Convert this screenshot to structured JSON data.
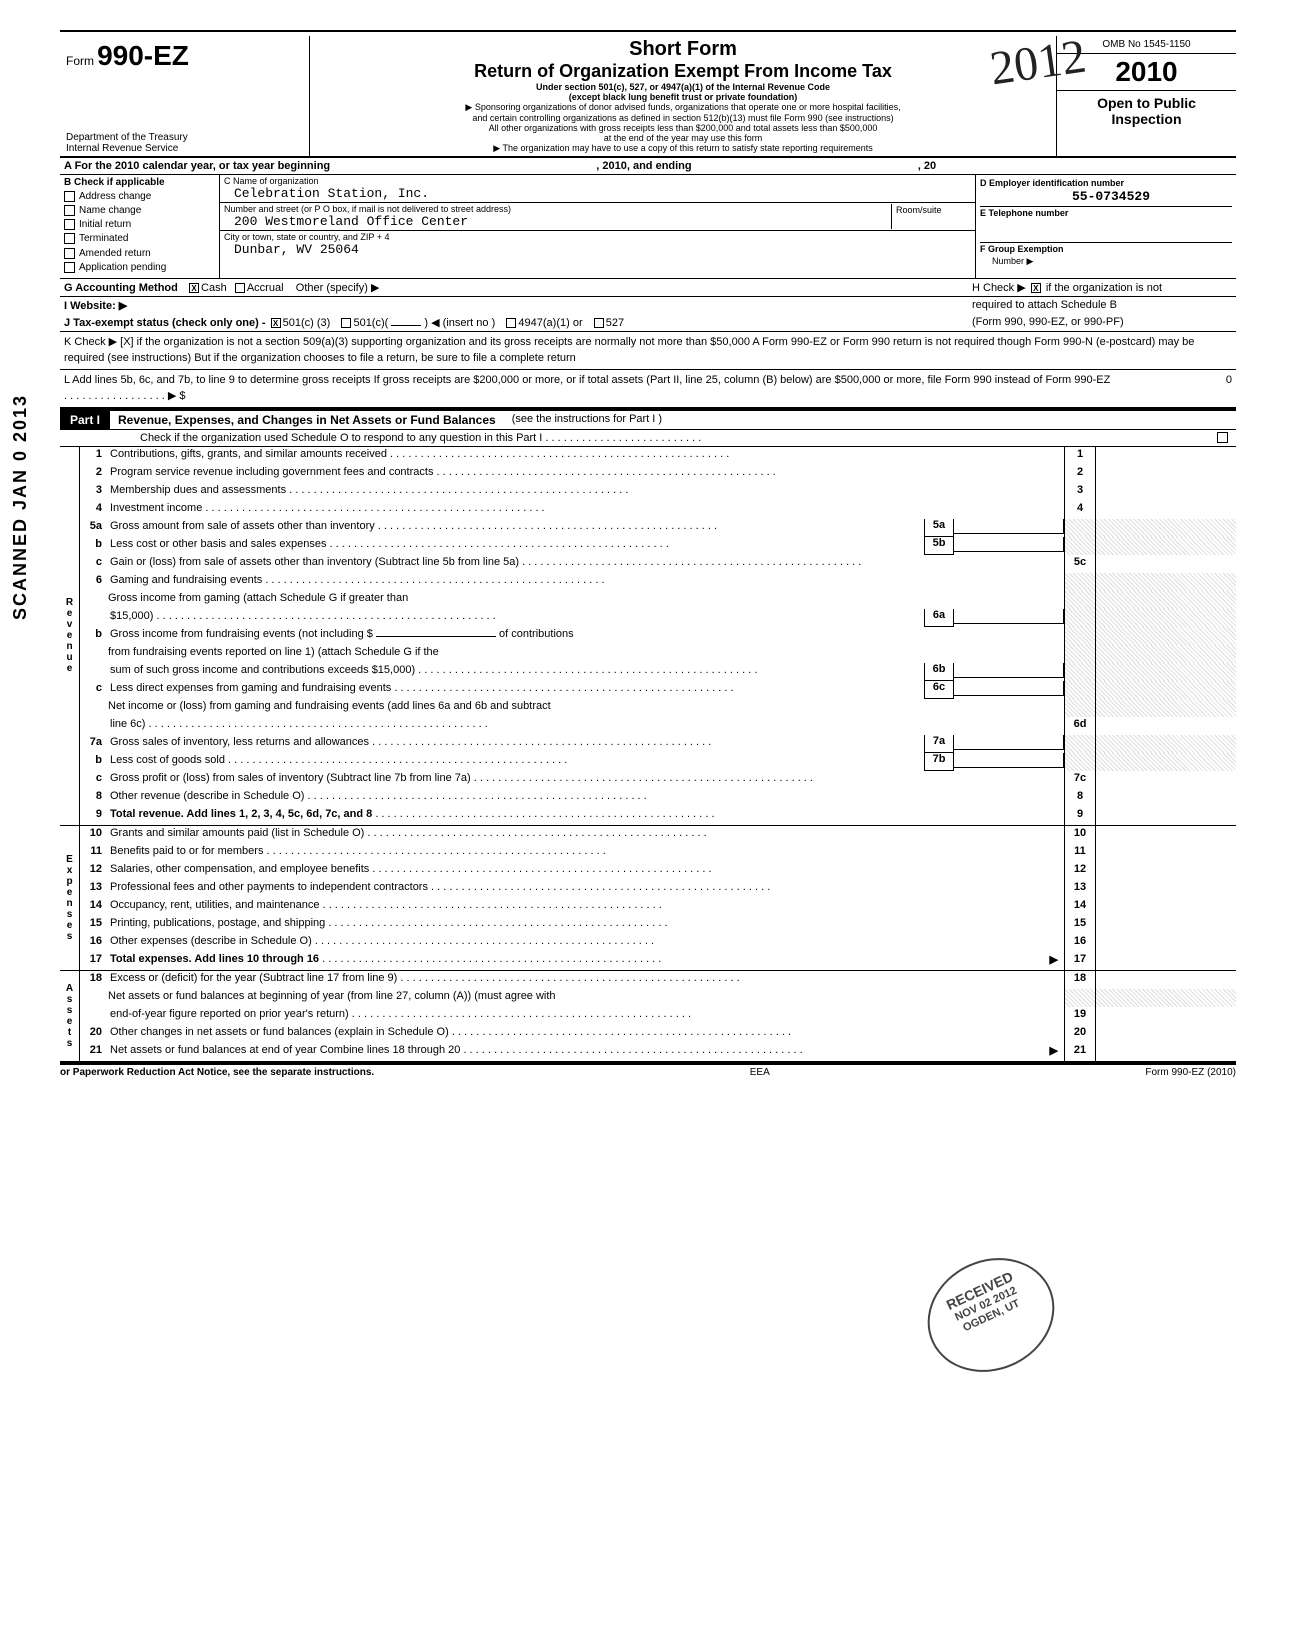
{
  "header": {
    "form_prefix": "Form",
    "form_no": "990-EZ",
    "dept1": "Department of the Treasury",
    "dept2": "Internal Revenue Service",
    "title1": "Short Form",
    "title2": "Return of Organization Exempt From Income Tax",
    "sub1": "Under section 501(c), 527, or 4947(a)(1) of the Internal Revenue Code",
    "sub2": "(except black lung benefit trust or private foundation)",
    "sub3": "▶ Sponsoring organizations of donor advised funds, organizations that operate one or more hospital facilities,",
    "sub4": "and certain controlling organizations as defined in section 512(b)(13) must file Form 990 (see instructions)",
    "sub5": "All other organizations with gross receipts less than $200,000 and total assets less than $500,000",
    "sub6": "at the end of the year may use this form",
    "sub7": "▶ The organization may have to use a copy of this return to satisfy state reporting requirements",
    "omb": "OMB No 1545-1150",
    "year": "2010",
    "open1": "Open to Public",
    "open2": "Inspection",
    "watermark": "2012"
  },
  "lineA": {
    "prefix": "A  For the 2010 calendar year, or tax year beginning",
    "mid": ", 2010, and ending",
    "suffix": ", 20"
  },
  "colB": {
    "title": "B  Check if applicable",
    "items": [
      "Address change",
      "Name change",
      "Initial return",
      "Terminated",
      "Amended return",
      "Application pending"
    ]
  },
  "colC": {
    "c_label": "C  Name of organization",
    "c_val": "Celebration Station, Inc.",
    "addr_label": "Number and street (or P O  box, if mail is not delivered to street address)",
    "room_label": "Room/suite",
    "addr_val": "200 Westmoreland Office Center",
    "city_label": "City or town, state or country, and ZIP + 4",
    "city_val": "Dunbar, WV 25064"
  },
  "colD": {
    "d_label": "D  Employer identification number",
    "d_val": "55-0734529",
    "e_label": "E  Telephone number",
    "f_label": "F  Group Exemption",
    "f_label2": "Number  ▶"
  },
  "lineG": "G    Accounting Method",
  "lineG_cash": "Cash",
  "lineG_accr": "Accrual",
  "lineG_other": "Other (specify) ▶",
  "lineH1": "H  Check ▶",
  "lineH2": "if the organization is not",
  "lineH3": "required to attach Schedule B",
  "lineH4": "(Form 990, 990-EZ, or 990-PF)",
  "lineI": "I      Website:  ▶",
  "lineJ": "J   Tax-exempt status (check only one) -",
  "lineJ_501c3": "501(c) (3)",
  "lineJ_501c": "501(c)(",
  "lineJ_insert": ") ◀ (insert no )",
  "lineJ_4947": "4947(a)(1) or",
  "lineJ_527": "527",
  "lineK": "K  Check ▶  [X] if the organization is not a section 509(a)(3) supporting organization and its gross receipts are normally not more than $50,000  A Form 990-EZ or Form 990 return is not required though Form 990-N (e-postcard) may be required (see instructions)  But if the organization chooses to file a return, be sure to file a complete return",
  "lineL": "L   Add lines 5b, 6c, and 7b, to line 9 to determine gross receipts  If gross receipts are $200,000 or more, or if total assets (Part II, line 25, column (B) below) are $500,000 or more, file Form 990 instead of Form 990-EZ    . . . . . . . . . . . . . . . . . ▶ $",
  "lineL_val": "0",
  "part1": {
    "label": "Part I",
    "title": "Revenue, Expenses, and Changes in Net Assets or Fund Balances",
    "paren": "(see the instructions for Part I )",
    "sub": "Check if the organization used Schedule O to respond to any question in this Part I   . . . . . . . . . . . . . . . . . . . . . . . . . ."
  },
  "side": {
    "rev": "Revenue",
    "exp": "Expenses",
    "net": "Net Assets"
  },
  "lines": {
    "1": {
      "no": "1",
      "txt": "Contributions, gifts, grants, and similar amounts received",
      "box": "1"
    },
    "2": {
      "no": "2",
      "txt": "Program service revenue including government fees and contracts",
      "box": "2"
    },
    "3": {
      "no": "3",
      "txt": "Membership dues and assessments",
      "box": "3"
    },
    "4": {
      "no": "4",
      "txt": "Investment income",
      "box": "4"
    },
    "5a": {
      "no": "5a",
      "txt": "Gross amount from sale of assets other than inventory",
      "ibox": "5a"
    },
    "5b": {
      "no": "b",
      "txt": "Less  cost or other basis and sales expenses",
      "ibox": "5b"
    },
    "5c": {
      "no": "c",
      "txt": "Gain or (loss) from sale of assets other than inventory (Subtract line 5b from line 5a)",
      "box": "5c"
    },
    "6": {
      "no": "6",
      "txt": "Gaming and fundraising events"
    },
    "6a": {
      "no": "a",
      "txt": "Gross income from gaming (attach Schedule G if greater than",
      "txt2": "$15,000)",
      "ibox": "6a"
    },
    "6b": {
      "no": "b",
      "txt": "Gross income from fundraising events (not including $",
      "txt2": "of contributions",
      "txt3": "from fundraising events reported on line 1) (attach Schedule G if the",
      "txt4": "sum of such gross income and contributions exceeds $15,000)",
      "ibox": "6b"
    },
    "6c": {
      "no": "c",
      "txt": "Less  direct expenses from gaming and fundraising events",
      "ibox": "6c"
    },
    "6d": {
      "no": "d",
      "txt": "Net income or (loss) from gaming and fundraising events (add lines 6a and 6b and subtract",
      "txt2": "line 6c)",
      "box": "6d"
    },
    "7a": {
      "no": "7a",
      "txt": "Gross sales of inventory, less returns and allowances",
      "ibox": "7a"
    },
    "7b": {
      "no": "b",
      "txt": "Less  cost of goods sold",
      "ibox": "7b"
    },
    "7c": {
      "no": "c",
      "txt": "Gross profit or (loss) from sales of inventory (Subtract line 7b from line 7a)",
      "box": "7c"
    },
    "8": {
      "no": "8",
      "txt": "Other revenue (describe in Schedule O)",
      "box": "8"
    },
    "9": {
      "no": "9",
      "txt": "Total revenue.  Add lines 1, 2, 3, 4, 5c, 6d, 7c, and 8",
      "box": "9",
      "bold": true
    },
    "10": {
      "no": "10",
      "txt": "Grants and similar amounts paid (list in Schedule O)",
      "box": "10"
    },
    "11": {
      "no": "11",
      "txt": "Benefits paid to or for members",
      "box": "11"
    },
    "12": {
      "no": "12",
      "txt": "Salaries, other compensation, and employee benefits",
      "box": "12"
    },
    "13": {
      "no": "13",
      "txt": "Professional fees and other payments to independent contractors",
      "box": "13"
    },
    "14": {
      "no": "14",
      "txt": "Occupancy, rent, utilities, and maintenance",
      "box": "14"
    },
    "15": {
      "no": "15",
      "txt": "Printing, publications, postage, and shipping",
      "box": "15"
    },
    "16": {
      "no": "16",
      "txt": "Other expenses (describe in Schedule O)",
      "box": "16"
    },
    "17": {
      "no": "17",
      "txt": "Total expenses.  Add lines 10 through 16",
      "box": "17",
      "bold": true,
      "arrow": true
    },
    "18": {
      "no": "18",
      "txt": "Excess or (deficit) for the year (Subtract line 17 from line 9)",
      "box": "18"
    },
    "19": {
      "no": "19",
      "txt": "Net assets or fund balances at beginning of year (from line 27, column (A)) (must agree with",
      "txt2": "end-of-year figure reported on prior year's return)",
      "box": "19"
    },
    "20": {
      "no": "20",
      "txt": "Other changes in net assets or fund balances (explain in Schedule O)",
      "box": "20"
    },
    "21": {
      "no": "21",
      "txt": "Net assets or fund balances at end of year  Combine lines 18 through 20",
      "box": "21",
      "arrow": true
    }
  },
  "footer": {
    "left": "or Paperwork Reduction Act Notice, see the separate instructions.",
    "mid": "EEA",
    "right": "Form 990-EZ (2010)"
  },
  "stamp": {
    "l1": "RECEIVED",
    "l2": "NOV 02 2012",
    "l3": "OGDEN, UT"
  },
  "scanned": "SCANNED  JAN 0  2013"
}
